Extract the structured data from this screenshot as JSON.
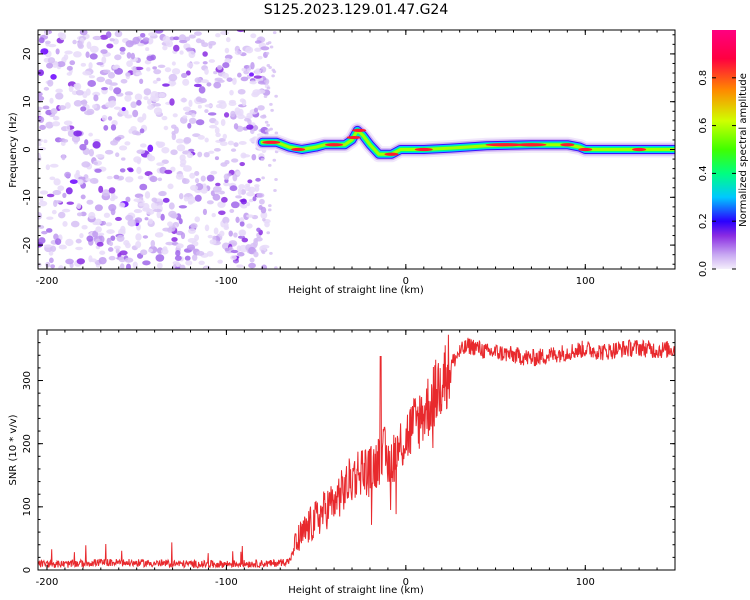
{
  "title": "S125.2023.129.01.47.G24",
  "chart_data": [
    {
      "type": "heatmap",
      "title": "",
      "xlabel": "Height of straight line (km)",
      "ylabel": "Frequency (Hz)",
      "xlim": [
        -205,
        150
      ],
      "ylim": [
        -25,
        25
      ],
      "x_ticks": [
        -200,
        -100,
        0,
        100
      ],
      "y_ticks": [
        -20,
        -10,
        0,
        10,
        20
      ],
      "colorbar": {
        "label": "Normalized spectral amplitude",
        "range": [
          0.0,
          1.0
        ],
        "ticks": [
          0.0,
          0.2,
          0.4,
          0.6,
          0.8
        ],
        "colors": [
          "#f4eefb",
          "#c8a8f2",
          "#8a2be2",
          "#2a00ff",
          "#00c8ff",
          "#00ff80",
          "#40ff00",
          "#d0ff00",
          "#ff8800",
          "#ff0040",
          "#ff0080"
        ]
      },
      "noise_region": {
        "x": [
          -205,
          -77
        ],
        "y": [
          -25,
          25
        ],
        "amplitude": [
          0.0,
          0.15
        ]
      },
      "signal_ridge": [
        {
          "x": -80,
          "y": 1.5
        },
        {
          "x": -72,
          "y": 1.5
        },
        {
          "x": -65,
          "y": 0.5
        },
        {
          "x": -58,
          "y": 0
        },
        {
          "x": -50,
          "y": 0.5
        },
        {
          "x": -45,
          "y": 1
        },
        {
          "x": -40,
          "y": 1
        },
        {
          "x": -34,
          "y": 1
        },
        {
          "x": -30,
          "y": 2
        },
        {
          "x": -27,
          "y": 4
        },
        {
          "x": -24,
          "y": 3
        },
        {
          "x": -20,
          "y": 1
        },
        {
          "x": -15,
          "y": -1
        },
        {
          "x": -8,
          "y": -1
        },
        {
          "x": -3,
          "y": 0
        },
        {
          "x": 10,
          "y": 0
        },
        {
          "x": 25,
          "y": 0.3
        },
        {
          "x": 45,
          "y": 0.8
        },
        {
          "x": 70,
          "y": 1
        },
        {
          "x": 90,
          "y": 1
        },
        {
          "x": 97,
          "y": 0.5
        },
        {
          "x": 100,
          "y": 0
        },
        {
          "x": 120,
          "y": 0
        },
        {
          "x": 150,
          "y": 0
        }
      ]
    },
    {
      "type": "line",
      "title": "",
      "xlabel": "Height of straight line (km)",
      "ylabel": "SNR (10 * v/v)",
      "xlim": [
        -205,
        150
      ],
      "ylim": [
        0,
        380
      ],
      "x_ticks": [
        -200,
        -100,
        0,
        100
      ],
      "y_ticks": [
        0,
        100,
        200,
        300
      ],
      "series": [
        {
          "color": "#e8292d",
          "x": [
            -205,
            -190,
            -170,
            -150,
            -130,
            -110,
            -90,
            -75,
            -65,
            -60,
            -55,
            -50,
            -45,
            -40,
            -35,
            -30,
            -25,
            -20,
            -15,
            -12,
            -10,
            -5,
            0,
            5,
            10,
            15,
            20,
            25,
            30,
            35,
            40,
            45,
            50,
            60,
            70,
            80,
            90,
            100,
            110,
            120,
            130,
            140,
            150
          ],
          "y": [
            10,
            9,
            12,
            11,
            10,
            9,
            10,
            10,
            14,
            45,
            65,
            80,
            95,
            110,
            125,
            145,
            160,
            155,
            175,
            185,
            165,
            190,
            210,
            230,
            250,
            270,
            300,
            325,
            345,
            355,
            352,
            345,
            345,
            340,
            335,
            340,
            345,
            350,
            345,
            350,
            352,
            348,
            350
          ]
        }
      ]
    }
  ]
}
